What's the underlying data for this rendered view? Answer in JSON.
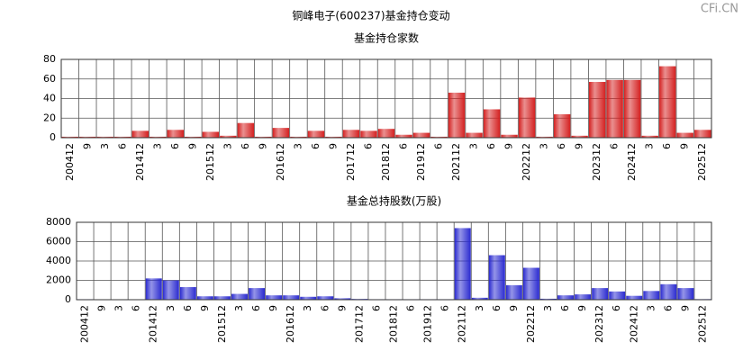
{
  "title": "铜峰电子(600237)基金持仓变动",
  "watermark": "CFi.CN",
  "chart_data": [
    {
      "type": "bar",
      "title": "基金持仓家数",
      "categories": [
        "200412",
        "9",
        "3",
        "6",
        "201412",
        "3",
        "6",
        "9",
        "201512",
        "3",
        "6",
        "9",
        "201612",
        "3",
        "6",
        "9",
        "201712",
        "6",
        "201812",
        "6",
        "201912",
        "6",
        "202112",
        "3",
        "6",
        "9",
        "202212",
        "3",
        "6",
        "9",
        "202312",
        "6",
        "202412",
        "3",
        "6",
        "9",
        "202512"
      ],
      "values": [
        1,
        1,
        1,
        1,
        7,
        1,
        8,
        1,
        6,
        2,
        15,
        1,
        10,
        1,
        7,
        1,
        8,
        7,
        9,
        3,
        5,
        1,
        46,
        5,
        29,
        3,
        41,
        1,
        24,
        2,
        57,
        59,
        59,
        2,
        73,
        5,
        8
      ],
      "color": "#d42020",
      "ylim": [
        0,
        80
      ],
      "yticks": [
        0,
        20,
        40,
        60,
        80
      ],
      "grid": true
    },
    {
      "type": "bar",
      "title": "基金总持股数(万股)",
      "categories": [
        "200412",
        "9",
        "3",
        "6",
        "201412",
        "3",
        "6",
        "9",
        "201512",
        "3",
        "6",
        "9",
        "201612",
        "3",
        "6",
        "9",
        "201712",
        "6",
        "201812",
        "6",
        "201912",
        "6",
        "202112",
        "3",
        "6",
        "9",
        "202212",
        "3",
        "6",
        "9",
        "202312",
        "6",
        "202412",
        "3",
        "6",
        "9",
        "202512"
      ],
      "values": [
        50,
        40,
        30,
        30,
        2200,
        2000,
        1300,
        350,
        350,
        600,
        1200,
        450,
        450,
        300,
        350,
        150,
        80,
        50,
        50,
        50,
        50,
        50,
        7400,
        200,
        4600,
        1500,
        3300,
        100,
        450,
        550,
        1200,
        850,
        400,
        900,
        1600,
        1200,
        60
      ],
      "color": "#2a2ad0",
      "ylim": [
        0,
        8000
      ],
      "yticks": [
        0,
        2000,
        4000,
        6000,
        8000
      ],
      "grid": true
    }
  ]
}
